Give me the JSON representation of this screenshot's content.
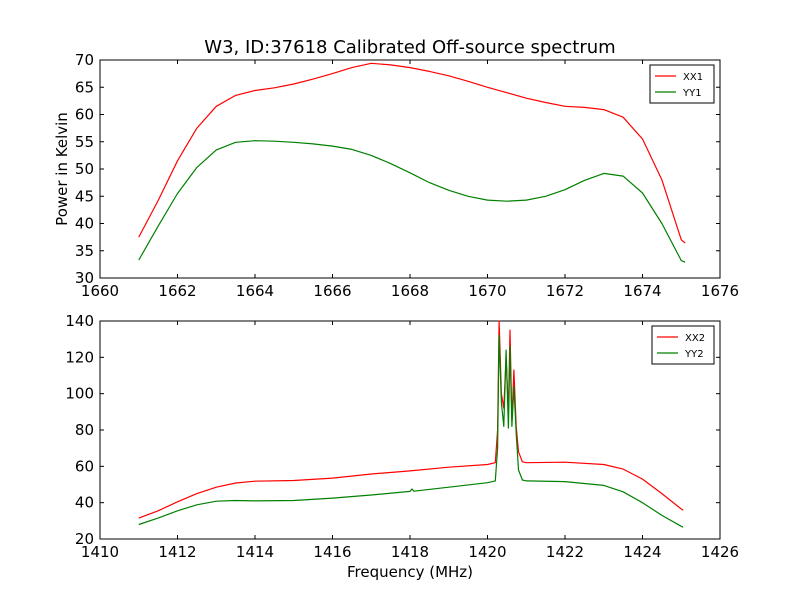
{
  "page": {
    "title": "W3, ID:37618 Calibrated Off-source spectrum"
  },
  "chart_data": [
    {
      "type": "line",
      "ylabel": "Power in Kelvin",
      "xlabel": "",
      "xlim": [
        1660,
        1676
      ],
      "ylim": [
        30,
        70
      ],
      "xticks": [
        "1660",
        "1662",
        "1664",
        "1666",
        "1668",
        "1670",
        "1672",
        "1674",
        "1676"
      ],
      "yticks": [
        "30",
        "35",
        "40",
        "45",
        "50",
        "55",
        "60",
        "65",
        "70"
      ],
      "legend_position": "top-right",
      "grid": false,
      "series": [
        {
          "name": "XX1",
          "color": "#ff0000",
          "points": [
            [
              1661.0,
              37.5
            ],
            [
              1661.5,
              44.2
            ],
            [
              1662.0,
              51.5
            ],
            [
              1662.5,
              57.5
            ],
            [
              1663.0,
              61.5
            ],
            [
              1663.5,
              63.5
            ],
            [
              1664.0,
              64.4
            ],
            [
              1664.5,
              64.9
            ],
            [
              1665.0,
              65.6
            ],
            [
              1665.5,
              66.5
            ],
            [
              1666.0,
              67.5
            ],
            [
              1666.5,
              68.6
            ],
            [
              1667.0,
              69.4
            ],
            [
              1667.5,
              69.1
            ],
            [
              1668.0,
              68.6
            ],
            [
              1668.5,
              67.9
            ],
            [
              1669.0,
              67.1
            ],
            [
              1669.5,
              66.1
            ],
            [
              1670.0,
              65.0
            ],
            [
              1670.5,
              64.0
            ],
            [
              1671.0,
              63.0
            ],
            [
              1671.5,
              62.2
            ],
            [
              1672.0,
              61.5
            ],
            [
              1672.5,
              61.3
            ],
            [
              1673.0,
              60.9
            ],
            [
              1673.5,
              59.5
            ],
            [
              1674.0,
              55.5
            ],
            [
              1674.5,
              48.0
            ],
            [
              1675.0,
              37.0
            ],
            [
              1675.1,
              36.4
            ]
          ]
        },
        {
          "name": "YY1",
          "color": "#008000",
          "points": [
            [
              1661.0,
              33.3
            ],
            [
              1661.5,
              39.5
            ],
            [
              1662.0,
              45.5
            ],
            [
              1662.5,
              50.3
            ],
            [
              1663.0,
              53.5
            ],
            [
              1663.5,
              54.9
            ],
            [
              1664.0,
              55.2
            ],
            [
              1664.5,
              55.1
            ],
            [
              1665.0,
              54.9
            ],
            [
              1665.5,
              54.6
            ],
            [
              1666.0,
              54.2
            ],
            [
              1666.5,
              53.6
            ],
            [
              1667.0,
              52.5
            ],
            [
              1667.5,
              51.0
            ],
            [
              1668.0,
              49.3
            ],
            [
              1668.5,
              47.5
            ],
            [
              1669.0,
              46.1
            ],
            [
              1669.5,
              45.0
            ],
            [
              1670.0,
              44.3
            ],
            [
              1670.5,
              44.1
            ],
            [
              1671.0,
              44.3
            ],
            [
              1671.5,
              45.0
            ],
            [
              1672.0,
              46.2
            ],
            [
              1672.5,
              47.9
            ],
            [
              1673.0,
              49.2
            ],
            [
              1673.5,
              48.7
            ],
            [
              1674.0,
              45.6
            ],
            [
              1674.5,
              40.0
            ],
            [
              1675.0,
              33.2
            ],
            [
              1675.1,
              32.9
            ]
          ]
        }
      ]
    },
    {
      "type": "line",
      "ylabel": "",
      "xlabel": "Frequency (MHz)",
      "xlim": [
        1410,
        1426
      ],
      "ylim": [
        20,
        140
      ],
      "xticks": [
        "1410",
        "1412",
        "1414",
        "1416",
        "1418",
        "1420",
        "1422",
        "1424",
        "1426"
      ],
      "yticks": [
        "20",
        "40",
        "60",
        "80",
        "100",
        "120",
        "140"
      ],
      "legend_position": "top-right",
      "grid": false,
      "series": [
        {
          "name": "XX2",
          "color": "#ff0000",
          "points": [
            [
              1411.0,
              31.5
            ],
            [
              1411.5,
              35.5
            ],
            [
              1412.0,
              40.5
            ],
            [
              1412.5,
              45.0
            ],
            [
              1413.0,
              48.5
            ],
            [
              1413.5,
              50.8
            ],
            [
              1414.0,
              51.8
            ],
            [
              1415.0,
              52.2
            ],
            [
              1416.0,
              53.5
            ],
            [
              1417.0,
              55.8
            ],
            [
              1418.0,
              57.5
            ],
            [
              1419.0,
              59.5
            ],
            [
              1420.0,
              61.0
            ],
            [
              1420.2,
              62.0
            ],
            [
              1420.26,
              80.0
            ],
            [
              1420.3,
              140.0
            ],
            [
              1420.36,
              100.0
            ],
            [
              1420.42,
              92.0
            ],
            [
              1420.48,
              120.0
            ],
            [
              1420.54,
              90.0
            ],
            [
              1420.58,
              135.0
            ],
            [
              1420.63,
              85.0
            ],
            [
              1420.68,
              113.0
            ],
            [
              1420.74,
              82.0
            ],
            [
              1420.8,
              68.0
            ],
            [
              1420.9,
              62.5
            ],
            [
              1421.0,
              62.0
            ],
            [
              1422.0,
              62.3
            ],
            [
              1423.0,
              61.0
            ],
            [
              1423.5,
              58.5
            ],
            [
              1424.0,
              53.0
            ],
            [
              1424.5,
              45.0
            ],
            [
              1425.0,
              36.5
            ],
            [
              1425.05,
              35.8
            ]
          ]
        },
        {
          "name": "YY2",
          "color": "#008000",
          "points": [
            [
              1411.0,
              28.0
            ],
            [
              1411.5,
              31.5
            ],
            [
              1412.0,
              35.5
            ],
            [
              1412.5,
              38.8
            ],
            [
              1413.0,
              40.8
            ],
            [
              1413.5,
              41.2
            ],
            [
              1414.0,
              41.0
            ],
            [
              1415.0,
              41.2
            ],
            [
              1416.0,
              42.5
            ],
            [
              1417.0,
              44.2
            ],
            [
              1418.0,
              46.2
            ],
            [
              1418.05,
              47.5
            ],
            [
              1418.1,
              46.3
            ],
            [
              1419.0,
              48.5
            ],
            [
              1420.0,
              51.0
            ],
            [
              1420.2,
              52.0
            ],
            [
              1420.26,
              70.0
            ],
            [
              1420.3,
              132.0
            ],
            [
              1420.36,
              95.0
            ],
            [
              1420.42,
              82.0
            ],
            [
              1420.48,
              124.0
            ],
            [
              1420.54,
              81.0
            ],
            [
              1420.58,
              126.0
            ],
            [
              1420.63,
              82.0
            ],
            [
              1420.68,
              104.0
            ],
            [
              1420.74,
              78.0
            ],
            [
              1420.8,
              58.0
            ],
            [
              1420.9,
              52.5
            ],
            [
              1421.0,
              52.0
            ],
            [
              1422.0,
              51.6
            ],
            [
              1423.0,
              49.5
            ],
            [
              1423.5,
              46.0
            ],
            [
              1424.0,
              40.0
            ],
            [
              1424.5,
              33.0
            ],
            [
              1425.0,
              27.0
            ],
            [
              1425.05,
              26.5
            ]
          ]
        }
      ]
    }
  ]
}
